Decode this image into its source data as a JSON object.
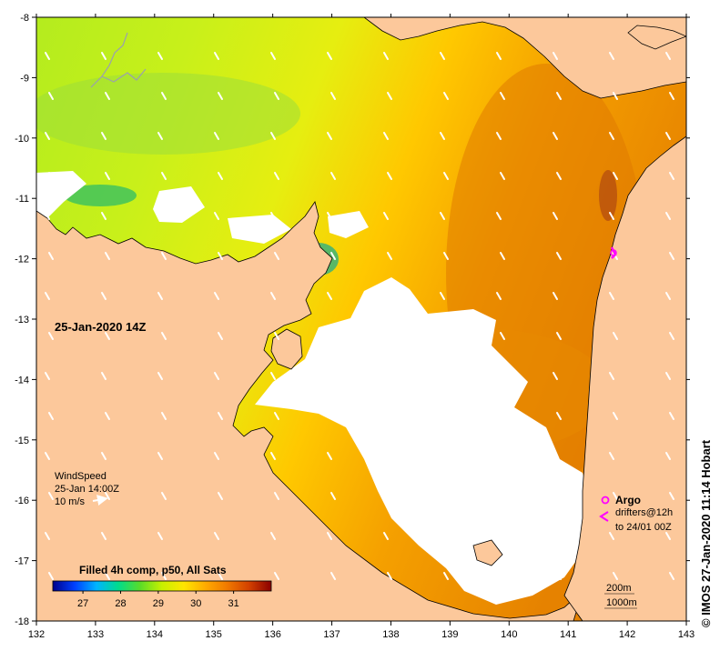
{
  "map": {
    "timestamp": "25-Jan-2020 14Z",
    "credit": "© IMOS 27-Jan-2020 11:14 Hobart",
    "colors": {
      "land": "#fcc89b",
      "cloud": "#ffffff",
      "coast": "#000000",
      "wind_arrow": "#ffffff",
      "argo": "#ff00ff",
      "river": "#9aa0ae"
    },
    "x_axis": {
      "ticks": [
        "132",
        "133",
        "134",
        "135",
        "136",
        "137",
        "138",
        "139",
        "140",
        "141",
        "142",
        "143"
      ]
    },
    "y_axis": {
      "ticks": [
        "-8",
        "-9",
        "-10",
        "-11",
        "-12",
        "-13",
        "-14",
        "-15",
        "-16",
        "-17",
        "-18"
      ]
    },
    "wind_legend": {
      "title": "WindSpeed",
      "time": "25-Jan 14:00Z",
      "scale": "10 m/s"
    },
    "argo_legend": {
      "title": "Argo",
      "drifters": "drifters@12h",
      "range": "to 24/01 00Z"
    },
    "depth_legend": {
      "c200": "200m",
      "c1000": "1000m"
    },
    "colorbar": {
      "title": "Filled 4h comp, p50, All Sats",
      "min": 26.2,
      "max": 32.0,
      "labels": [
        "27",
        "28",
        "29",
        "30",
        "31"
      ],
      "stops": [
        "#00008b",
        "#0040ff",
        "#00b4ff",
        "#00dc8c",
        "#5adc28",
        "#c8f000",
        "#ffe600",
        "#ffaa00",
        "#f07800",
        "#d24000",
        "#8b0000"
      ]
    }
  }
}
